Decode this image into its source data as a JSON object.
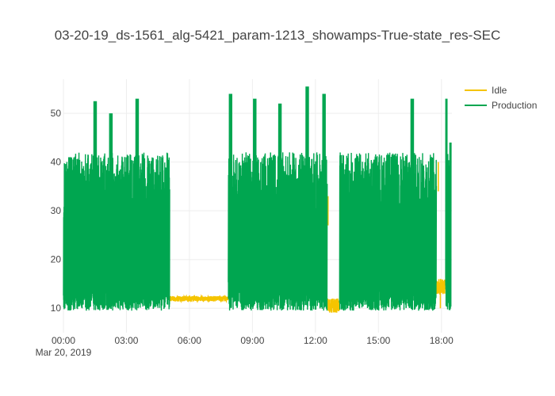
{
  "chart_data": {
    "type": "line",
    "title": "03-20-19_ds-1561_alg-5421_param-1213_showamps-True-state_res-SEC",
    "xlabel": "",
    "ylabel": "",
    "x_range_hours": [
      0,
      18.5
    ],
    "x_ticks": [
      {
        "hour": 0,
        "label": "00:00"
      },
      {
        "hour": 3,
        "label": "03:00"
      },
      {
        "hour": 6,
        "label": "06:00"
      },
      {
        "hour": 9,
        "label": "09:00"
      },
      {
        "hour": 12,
        "label": "12:00"
      },
      {
        "hour": 15,
        "label": "15:00"
      },
      {
        "hour": 18,
        "label": "18:00"
      }
    ],
    "x_date_label": "Mar 20, 2019",
    "ylim": [
      5,
      57
    ],
    "y_ticks": [
      10,
      20,
      30,
      40,
      50
    ],
    "grid": true,
    "legend_position": "top-right",
    "series": [
      {
        "name": "Idle",
        "color": "#f5c400",
        "segments": [
          {
            "x_start": 5.05,
            "x_end": 7.85,
            "y_min": 10.8,
            "y_max": 12.5
          },
          {
            "x_start": 12.55,
            "x_end": 13.15,
            "y_min": 7.5,
            "y_max": 12.0
          },
          {
            "x_start": 17.75,
            "x_end": 18.2,
            "y_min": 11.0,
            "y_max": 16.0
          }
        ],
        "points": [
          {
            "x": 12.6,
            "y": 33.0
          },
          {
            "x": 17.85,
            "y": 40.0
          },
          {
            "x": 17.95,
            "y": 16.0
          }
        ]
      },
      {
        "name": "Production",
        "color": "#00a650",
        "segments": [
          {
            "x_start": 0.0,
            "x_end": 5.05
          },
          {
            "x_start": 7.85,
            "x_end": 12.55
          },
          {
            "x_start": 13.15,
            "x_end": 17.75
          },
          {
            "x_start": 18.2,
            "x_end": 18.45
          }
        ],
        "peaks": [
          {
            "x": 0.3,
            "y": 41.0
          },
          {
            "x": 1.5,
            "y": 52.5
          },
          {
            "x": 2.25,
            "y": 50.0
          },
          {
            "x": 3.5,
            "y": 53.0
          },
          {
            "x": 7.95,
            "y": 54.0
          },
          {
            "x": 9.1,
            "y": 53.0
          },
          {
            "x": 10.3,
            "y": 52.0
          },
          {
            "x": 11.6,
            "y": 55.5
          },
          {
            "x": 12.4,
            "y": 54.0
          },
          {
            "x": 16.6,
            "y": 53.0
          },
          {
            "x": 18.2,
            "y": 53.0
          },
          {
            "x": 18.45,
            "y": 44.0
          }
        ],
        "y_min": 9.5
      }
    ]
  }
}
